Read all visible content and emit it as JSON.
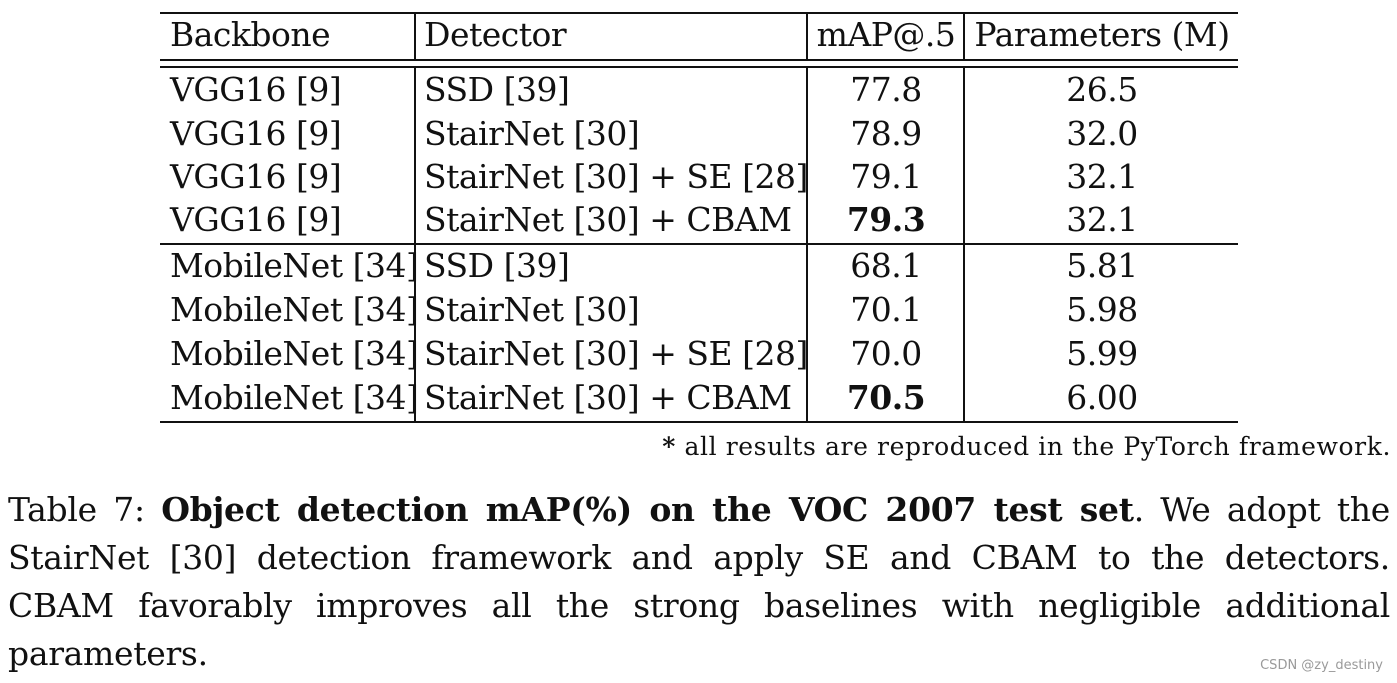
{
  "table": {
    "header": {
      "backbone": "Backbone",
      "detector": "Detector",
      "map": "mAP@.5",
      "params": "Parameters (M)"
    },
    "rows": [
      {
        "backbone": "VGG16 [9]",
        "detector": "SSD [39]",
        "map": "77.8",
        "params": "26.5",
        "best": false
      },
      {
        "backbone": "VGG16 [9]",
        "detector": "StairNet [30]",
        "map": "78.9",
        "params": "32.0",
        "best": false
      },
      {
        "backbone": "VGG16 [9]",
        "detector": "StairNet [30] + SE [28]",
        "map": "79.1",
        "params": "32.1",
        "best": false
      },
      {
        "backbone": "VGG16 [9]",
        "detector": "StairNet [30] + CBAM",
        "map": "79.3",
        "params": "32.1",
        "best": true
      },
      {
        "backbone": "MobileNet [34]",
        "detector": "SSD [39]",
        "map": "68.1",
        "params": "5.81",
        "best": false
      },
      {
        "backbone": "MobileNet [34]",
        "detector": "StairNet [30]",
        "map": "70.1",
        "params": "5.98",
        "best": false
      },
      {
        "backbone": "MobileNet [34]",
        "detector": "StairNet [30] + SE [28]",
        "map": "70.0",
        "params": "5.99",
        "best": false
      },
      {
        "backbone": "MobileNet [34]",
        "detector": "StairNet [30] + CBAM",
        "map": "70.5",
        "params": "6.00",
        "best": true
      }
    ]
  },
  "footnote": {
    "mark": "*",
    "text": "all results are reproduced in the PyTorch framework."
  },
  "caption": {
    "label": "Table 7:",
    "title": "Object detection mAP(%) on the VOC 2007 test set",
    "body": ". We adopt the StairNet [30] detection framework and apply SE and CBAM to the detectors. CBAM favorably improves all the strong baselines with negligible additional parameters."
  },
  "watermark": "CSDN @zy_destiny"
}
